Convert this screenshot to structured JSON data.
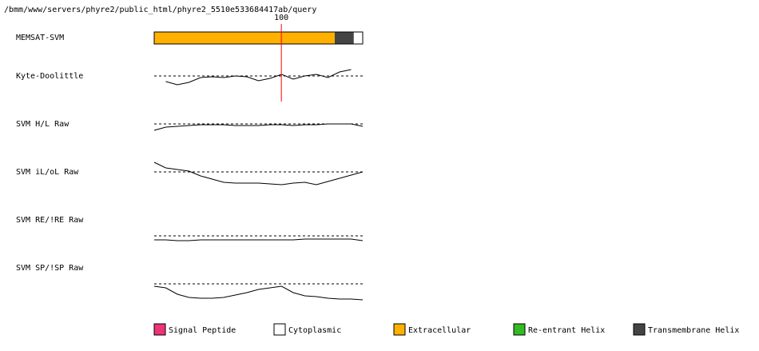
{
  "chart_data": {
    "type": "track",
    "title": "/bmm/www/servers/phyre2/public_html/phyre2_5510e533684417ab/query",
    "xlim": [
      0,
      164
    ],
    "marker": {
      "value": 100,
      "color": "#ff0000"
    },
    "tracks": [
      {
        "name": "MEMSAT-SVM",
        "segments": [
          {
            "start": 0,
            "end": 142,
            "color": "#ffb000"
          },
          {
            "start": 142,
            "end": 157,
            "color": "#444444"
          },
          {
            "start": 157,
            "end": 164,
            "color": "#ffffff"
          }
        ]
      },
      {
        "name": "Kyte-Doolittle",
        "ylim": [
          -1,
          1
        ],
        "values": [
          null,
          -0.35,
          -0.55,
          -0.4,
          -0.1,
          -0.05,
          -0.1,
          0,
          -0.05,
          -0.3,
          -0.15,
          0.1,
          -0.2,
          0,
          0.1,
          -0.1,
          0.25,
          0.4,
          null
        ]
      },
      {
        "name": "SVM H/L Raw",
        "ylim": [
          -1,
          1
        ],
        "values": [
          -0.4,
          -0.2,
          -0.15,
          -0.1,
          -0.05,
          -0.05,
          -0.05,
          -0.1,
          -0.1,
          -0.1,
          -0.05,
          -0.05,
          -0.1,
          -0.05,
          -0.05,
          0,
          0,
          0,
          -0.15
        ]
      },
      {
        "name": "SVM iL/oL Raw",
        "ylim": [
          -1,
          1
        ],
        "values": [
          0.6,
          0.25,
          0.15,
          0.05,
          -0.25,
          -0.45,
          -0.65,
          -0.7,
          -0.7,
          -0.7,
          -0.75,
          -0.8,
          -0.7,
          -0.65,
          -0.8,
          -0.6,
          -0.4,
          -0.2,
          0
        ]
      },
      {
        "name": "SVM RE/!RE Raw",
        "ylim": [
          -1,
          1
        ],
        "values": [
          -0.25,
          -0.25,
          -0.3,
          -0.3,
          -0.25,
          -0.25,
          -0.25,
          -0.25,
          -0.25,
          -0.25,
          -0.25,
          -0.25,
          -0.25,
          -0.2,
          -0.2,
          -0.2,
          -0.2,
          -0.2,
          -0.3
        ]
      },
      {
        "name": "SVM SP/!SP Raw",
        "ylim": [
          -1,
          1
        ],
        "values": [
          -0.15,
          -0.25,
          -0.65,
          -0.85,
          -0.9,
          -0.9,
          -0.85,
          -0.7,
          -0.55,
          -0.35,
          -0.25,
          -0.15,
          -0.55,
          -0.75,
          -0.8,
          -0.9,
          -0.95,
          -0.95,
          -1
        ]
      }
    ],
    "legend": [
      {
        "name": "Signal Peptide",
        "color": "#ee3377"
      },
      {
        "name": "Cytoplasmic",
        "color": "#ffffff"
      },
      {
        "name": "Extracellular",
        "color": "#ffb000"
      },
      {
        "name": "Re-entrant Helix",
        "color": "#33bb22"
      },
      {
        "name": "Transmembrane Helix",
        "color": "#444444"
      }
    ]
  }
}
